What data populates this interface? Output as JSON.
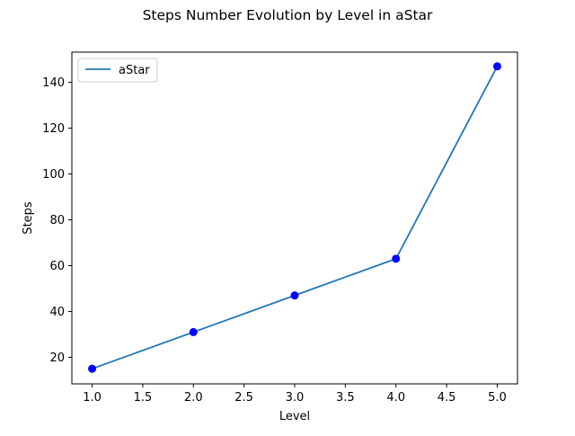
{
  "chart_data": {
    "type": "line",
    "title": "Steps Number Evolution by Level in aStar",
    "xlabel": "Level",
    "ylabel": "Steps",
    "xlim": [
      0.8,
      5.2
    ],
    "ylim": [
      8.4,
      153.2
    ],
    "x_ticks": [
      "1.0",
      "1.5",
      "2.0",
      "2.5",
      "3.0",
      "3.5",
      "4.0",
      "4.5",
      "5.0"
    ],
    "y_ticks": [
      "20",
      "40",
      "60",
      "80",
      "100",
      "120",
      "140"
    ],
    "grid": false,
    "legend_placement": "top-left",
    "series": [
      {
        "name": "aStar",
        "x": [
          1,
          2,
          3,
          4,
          5
        ],
        "y": [
          15,
          31,
          47,
          63,
          147
        ],
        "line_color": "#1f77b4",
        "marker_color": "#0000ff"
      }
    ]
  }
}
